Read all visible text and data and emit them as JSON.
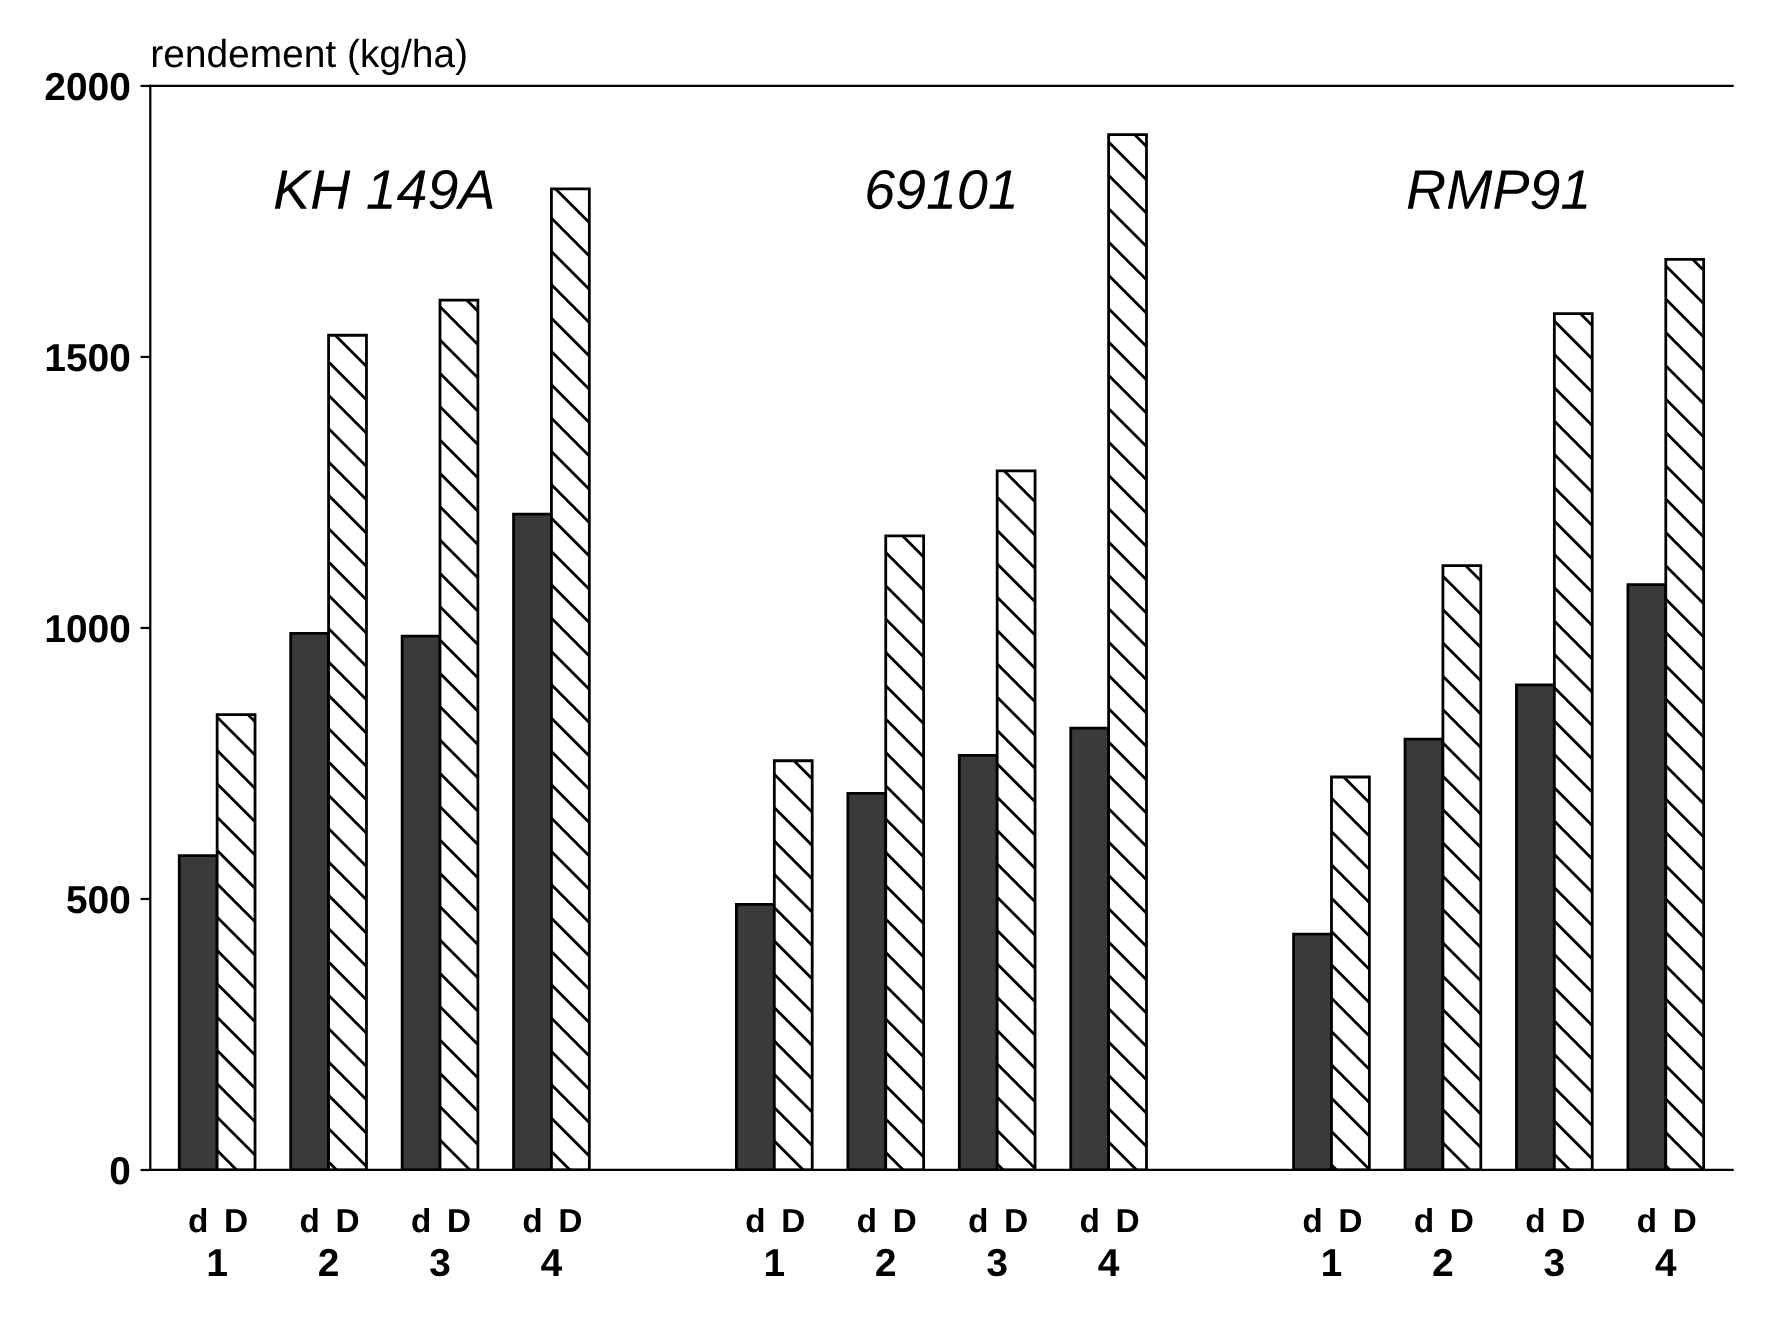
{
  "chart_data": {
    "type": "bar",
    "ylabel": "rendement (kg/ha)",
    "categories": [
      "1",
      "2",
      "3",
      "4",
      null,
      "1",
      "2",
      "3",
      "4",
      null,
      "1",
      "2",
      "3",
      "4"
    ],
    "series": [
      {
        "name": "d",
        "color": "#3a3a3a",
        "values": [
          580,
          990,
          985,
          1210,
          null,
          490,
          695,
          765,
          815,
          null,
          435,
          795,
          895,
          1080
        ]
      },
      {
        "name": "D",
        "color": "#000000",
        "values": [
          840,
          1540,
          1605,
          1810,
          null,
          755,
          1170,
          1290,
          1910,
          null,
          725,
          1115,
          1580,
          1680
        ]
      }
    ],
    "annotations": [
      "KH 149A",
      "69101",
      "RMP91"
    ],
    "ylim": [
      0,
      2000
    ],
    "yticks": [
      0,
      500,
      1000,
      1500,
      2000
    ],
    "grid": false,
    "legend": false
  }
}
